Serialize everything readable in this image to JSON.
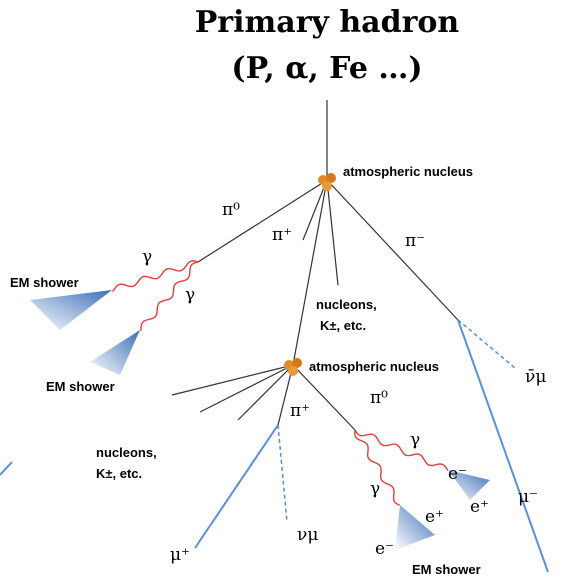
{
  "title": [
    "Primary hadron",
    "(P, α, Fe …)"
  ],
  "labels": [
    "atmospheric nucleus",
    "π⁰",
    "π⁺",
    "π⁻",
    "γ",
    "γ",
    "EM shower",
    "EM shower",
    "nucleons,",
    "K±,  etc.",
    "ν̄μ",
    "atmospheric nucleus",
    "π⁰",
    "π⁺",
    "nucleons,",
    "K±,  etc.",
    "γ",
    "γ",
    "e⁻",
    "e⁺",
    "e⁺",
    "e⁻",
    "μ⁻",
    "μ⁺",
    "νμ",
    "EM shower"
  ]
}
